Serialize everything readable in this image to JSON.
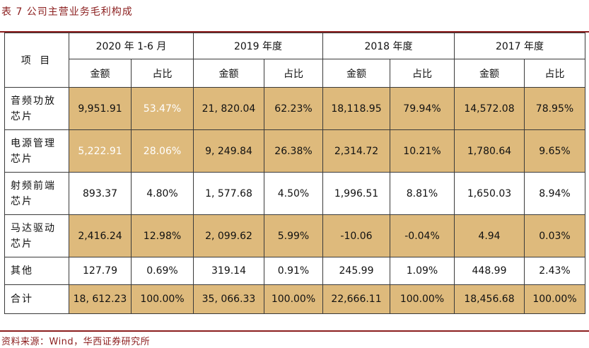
{
  "title": "表 7  公司主营业务毛利构成",
  "header": {
    "item_label": "项 目",
    "periods": [
      "2020 年 1-6 月",
      "2019 年度",
      "2018 年度",
      "2017 年度"
    ],
    "sub_labels": [
      "金额",
      "占比"
    ]
  },
  "rows": [
    {
      "name_line1": "音频功放",
      "name_line2": "芯片",
      "cells": [
        "9,951.91",
        "53.47%",
        "21, 820.04",
        "62.23%",
        "18,118.95",
        "79.94%",
        "14,572.08",
        "78.95%"
      ]
    },
    {
      "name_line1": "电源管理",
      "name_line2": "芯片",
      "cells": [
        "5,222.91",
        "28.06%",
        "9, 249.84",
        "26.38%",
        "2,314.72",
        "10.21%",
        "1,780.64",
        "9.65%"
      ]
    },
    {
      "name_line1": "射频前端",
      "name_line2": "芯片",
      "cells": [
        "893.37",
        "4.80%",
        "1, 577.68",
        "4.50%",
        "1,996.51",
        "8.81%",
        "1,650.03",
        "8.94%"
      ]
    },
    {
      "name_line1": "马达驱动",
      "name_line2": "芯片",
      "cells": [
        "2,416.24",
        "12.98%",
        "2, 099.62",
        "5.99%",
        "-10.06",
        "-0.04%",
        "4.94",
        "0.03%"
      ]
    },
    {
      "name_line1": "其他",
      "name_line2": "",
      "cells": [
        "127.79",
        "0.69%",
        "319.14",
        "0.91%",
        "245.99",
        "1.09%",
        "448.99",
        "2.43%"
      ]
    },
    {
      "name_line1": "合计",
      "name_line2": "",
      "cells": [
        "18, 612.23",
        "100.00%",
        "35, 066.33",
        "100.00%",
        "22,666.11",
        "100.00%",
        "18,456.68",
        "100.00%"
      ]
    }
  ],
  "source": "资料来源：Wind，华西证券研究所",
  "colors": {
    "accent": "#8b1e1e",
    "tan_fill": "#deba7c",
    "highlight_text": "#ffffff"
  }
}
